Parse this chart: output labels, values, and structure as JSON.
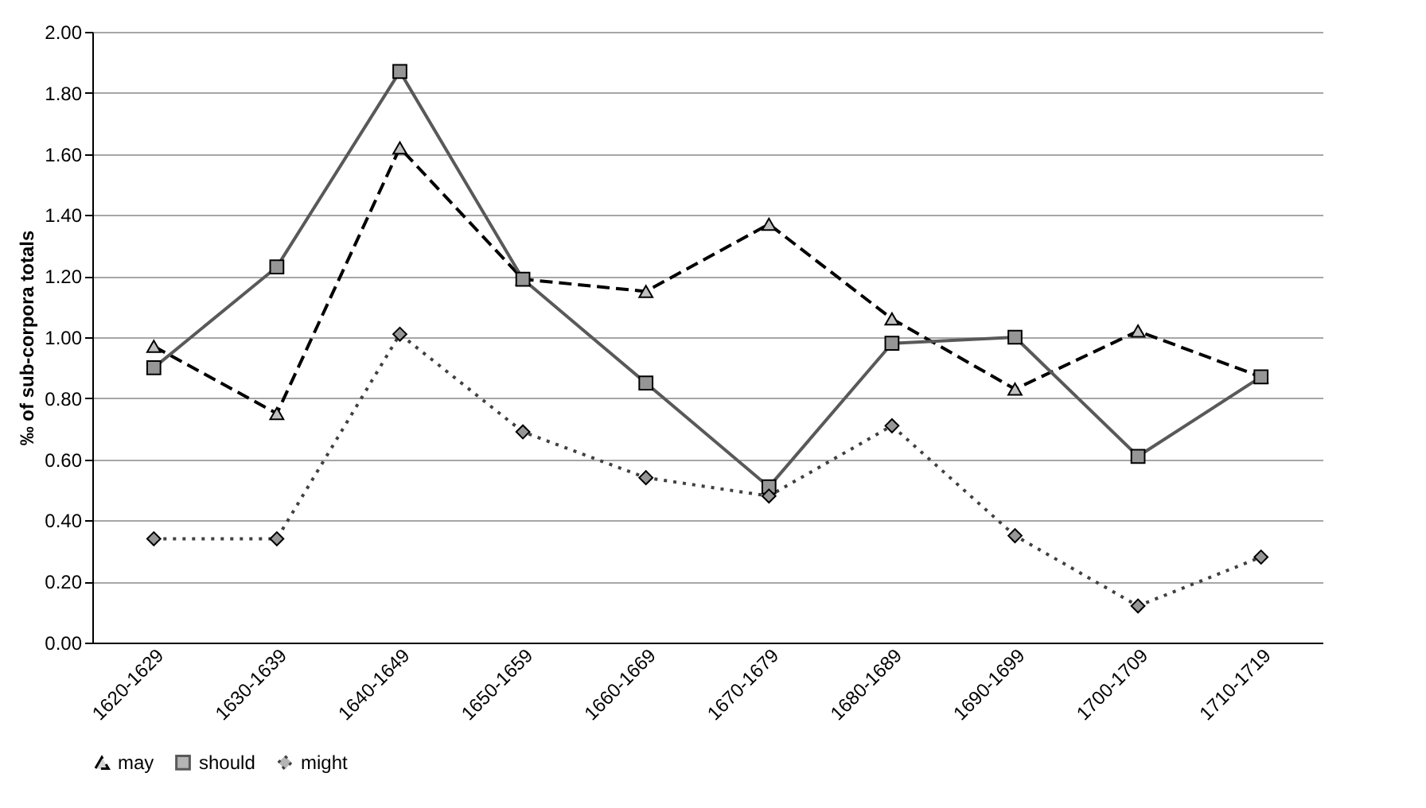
{
  "chart_data": {
    "type": "line",
    "ylabel": "‰ of sub-corpora totals",
    "categories": [
      "1620-1629",
      "1630-1639",
      "1640-1649",
      "1650-1659",
      "1660-1669",
      "1670-1679",
      "1680-1689",
      "1690-1699",
      "1700-1709",
      "1710-1719"
    ],
    "series": [
      {
        "name": "may",
        "color": "#000000",
        "marker": "triangle",
        "line_style": "dashed",
        "values": [
          0.97,
          0.75,
          1.62,
          1.19,
          1.15,
          1.37,
          1.06,
          0.83,
          1.02,
          0.87
        ]
      },
      {
        "name": "should",
        "color": "#595959",
        "marker": "square",
        "line_style": "solid",
        "values": [
          0.9,
          1.23,
          1.87,
          1.19,
          0.85,
          0.51,
          0.98,
          1.0,
          0.61,
          0.87
        ]
      },
      {
        "name": "might",
        "color": "#404040",
        "marker": "diamond",
        "line_style": "dotted",
        "values": [
          0.34,
          0.34,
          1.01,
          0.69,
          0.54,
          0.48,
          0.71,
          0.35,
          0.12,
          0.28
        ]
      }
    ],
    "ylim": [
      0,
      2
    ],
    "yticks": [
      {
        "value": 0,
        "label": "0.00"
      },
      {
        "value": 0.2,
        "label": "0.20"
      },
      {
        "value": 0.4,
        "label": "0.40"
      },
      {
        "value": 0.6,
        "label": "0.60"
      },
      {
        "value": 0.8,
        "label": "0.80"
      },
      {
        "value": 1,
        "label": "1.00"
      },
      {
        "value": 1.2,
        "label": "1.20"
      },
      {
        "value": 1.4,
        "label": "1.40"
      },
      {
        "value": 1.6,
        "label": "1.60"
      },
      {
        "value": 1.8,
        "label": "1.80"
      },
      {
        "value": 2,
        "label": "2.00"
      }
    ],
    "grid": "y",
    "legend": "bottom"
  }
}
